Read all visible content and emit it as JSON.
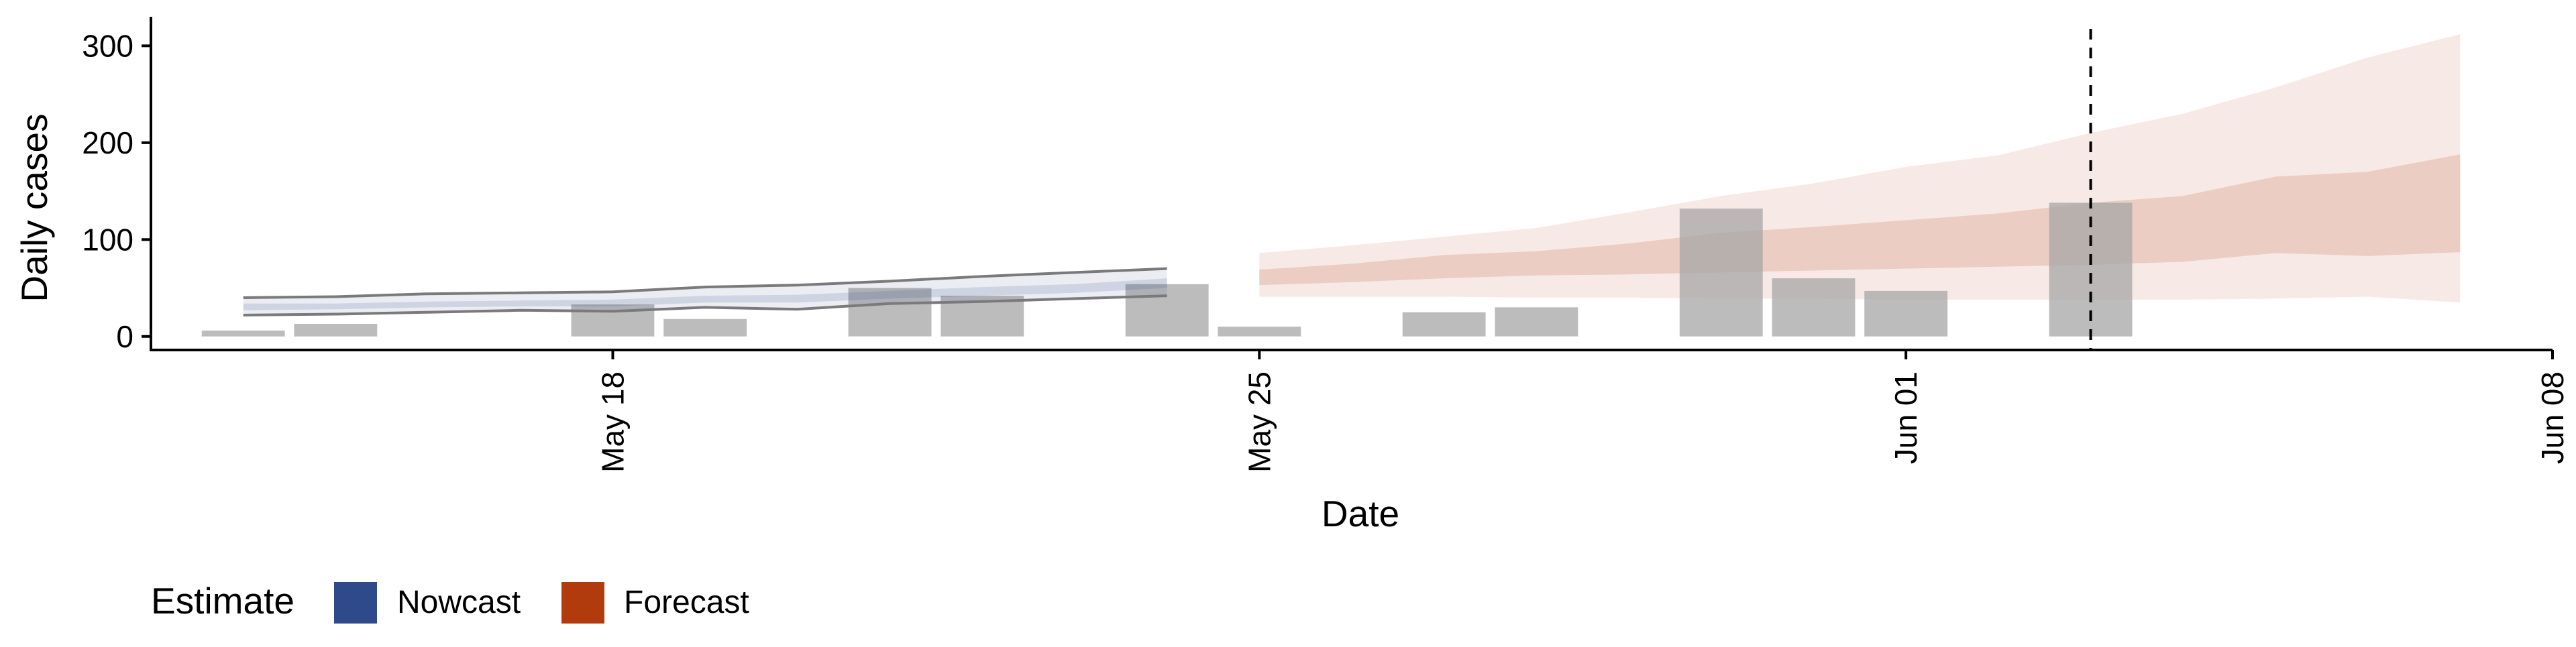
{
  "chart_data": {
    "type": "bar",
    "title": "",
    "xlabel": "Date",
    "ylabel": "Daily cases",
    "ylim": [
      -14,
      330
    ],
    "xlim": [
      "2020-05-13",
      "2020-06-08"
    ],
    "y_ticks": [
      {
        "value": 0,
        "label": "0"
      },
      {
        "value": 100,
        "label": "100"
      },
      {
        "value": 200,
        "label": "200"
      },
      {
        "value": 300,
        "label": "300"
      }
    ],
    "x_ticks": [
      {
        "date": "2020-05-18",
        "label": "May 18"
      },
      {
        "date": "2020-05-25",
        "label": "May 25"
      },
      {
        "date": "2020-06-01",
        "label": "Jun 01"
      },
      {
        "date": "2020-06-08",
        "label": "Jun 08"
      }
    ],
    "grid": false,
    "bar_color": "#a6a6a6",
    "reported_cases": [
      {
        "date": "2020-05-14",
        "value": 6
      },
      {
        "date": "2020-05-15",
        "value": 13
      },
      {
        "date": "2020-05-18",
        "value": 33
      },
      {
        "date": "2020-05-19",
        "value": 18
      },
      {
        "date": "2020-05-21",
        "value": 50
      },
      {
        "date": "2020-05-22",
        "value": 42
      },
      {
        "date": "2020-05-24",
        "value": 54
      },
      {
        "date": "2020-05-25",
        "value": 10
      },
      {
        "date": "2020-05-27",
        "value": 25
      },
      {
        "date": "2020-05-28",
        "value": 30
      },
      {
        "date": "2020-05-30",
        "value": 132
      },
      {
        "date": "2020-05-31",
        "value": 60
      },
      {
        "date": "2020-06-01",
        "value": 47
      },
      {
        "date": "2020-06-03",
        "value": 138
      }
    ],
    "reference_line": {
      "date": "2020-06-03",
      "style": "dashed"
    },
    "nowcast": {
      "color": "#3a4f8a",
      "dates": [
        "2020-05-14",
        "2020-05-15",
        "2020-05-16",
        "2020-05-17",
        "2020-05-18",
        "2020-05-19",
        "2020-05-20",
        "2020-05-21",
        "2020-05-22",
        "2020-05-23",
        "2020-05-24"
      ],
      "outer_upper": [
        40,
        41,
        44,
        45,
        46,
        51,
        53,
        57,
        62,
        66,
        70
      ],
      "outer_lower": [
        22,
        23,
        25,
        27,
        26,
        30,
        28,
        34,
        36,
        39,
        42
      ],
      "inner_upper": [
        34,
        34,
        36,
        37,
        38,
        42,
        43,
        47,
        51,
        54,
        60
      ],
      "inner_lower": [
        27,
        28,
        30,
        31,
        31,
        35,
        35,
        39,
        42,
        45,
        50
      ]
    },
    "forecast": {
      "color": "#b5431c",
      "dates": [
        "2020-05-25",
        "2020-05-26",
        "2020-05-27",
        "2020-05-28",
        "2020-05-29",
        "2020-05-30",
        "2020-05-31",
        "2020-06-01",
        "2020-06-02",
        "2020-06-03",
        "2020-06-04",
        "2020-06-05",
        "2020-06-06",
        "2020-06-07"
      ],
      "outer_upper": [
        86,
        94,
        103,
        112,
        128,
        145,
        158,
        175,
        187,
        210,
        230,
        257,
        288,
        312
      ],
      "outer_lower": [
        41,
        41,
        41,
        40,
        40,
        39,
        39,
        38,
        38,
        38,
        38,
        39,
        41,
        35
      ],
      "inner_upper": [
        69,
        75,
        84,
        88,
        96,
        107,
        113,
        120,
        127,
        138,
        145,
        165,
        170,
        188
      ],
      "inner_lower": [
        53,
        56,
        60,
        63,
        64,
        66,
        68,
        70,
        72,
        74,
        77,
        86,
        83,
        87
      ]
    },
    "legend": {
      "position": "bottom-left",
      "title": "Estimate",
      "items": [
        {
          "label": "Nowcast",
          "color": "#2e4a8b"
        },
        {
          "label": "Forecast",
          "color": "#b23b0e"
        }
      ]
    }
  }
}
